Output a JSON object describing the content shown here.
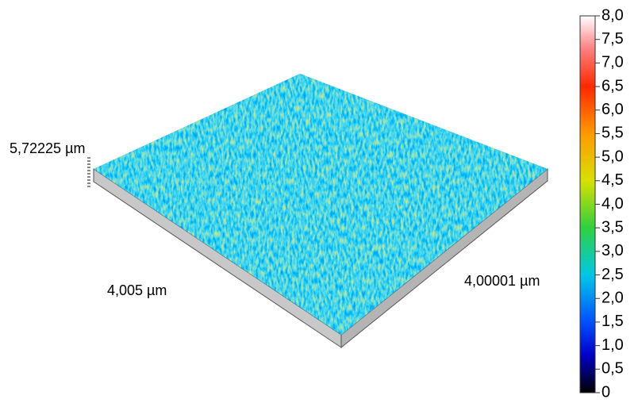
{
  "chart_data": {
    "type": "surface",
    "axis_labels": {
      "z": "5,72225 µm",
      "x": "4,005 µm",
      "y": "4,00001 µm"
    },
    "clim": [
      0,
      8
    ],
    "cticks": [
      0,
      {
        "value": 0.5,
        "label": "0,5"
      },
      {
        "value": 1,
        "label": "1,0"
      },
      {
        "value": 1.5,
        "label": "1,5"
      },
      {
        "value": 2,
        "label": "2,0"
      },
      {
        "value": 2.5,
        "label": "2,5"
      },
      {
        "value": 3,
        "label": "3,0"
      },
      {
        "value": 3.5,
        "label": "3,5"
      },
      {
        "value": 4,
        "label": "4,0"
      },
      {
        "value": 4.5,
        "label": "4,5"
      },
      {
        "value": 5,
        "label": "5,0"
      },
      {
        "value": 5.5,
        "label": "5,5"
      },
      {
        "value": 6,
        "label": "6,0"
      },
      {
        "value": 6.5,
        "label": "6,5"
      },
      {
        "value": 7,
        "label": "7,0"
      },
      {
        "value": 7.5,
        "label": "7,5"
      },
      {
        "value": 8,
        "label": "8,0"
      }
    ],
    "colormap": [
      {
        "value": 0,
        "color": "#000000"
      },
      {
        "value": 0.8,
        "color": "#0000c8"
      },
      {
        "value": 1.5,
        "color": "#0050ff"
      },
      {
        "value": 2.5,
        "color": "#00c8e6"
      },
      {
        "value": 3.5,
        "color": "#30d040"
      },
      {
        "value": 4.5,
        "color": "#d8e000"
      },
      {
        "value": 5.5,
        "color": "#ff9a00"
      },
      {
        "value": 6.5,
        "color": "#ff2800"
      },
      {
        "value": 7.3,
        "color": "#ff8080"
      },
      {
        "value": 8,
        "color": "#ffffff"
      }
    ]
  }
}
